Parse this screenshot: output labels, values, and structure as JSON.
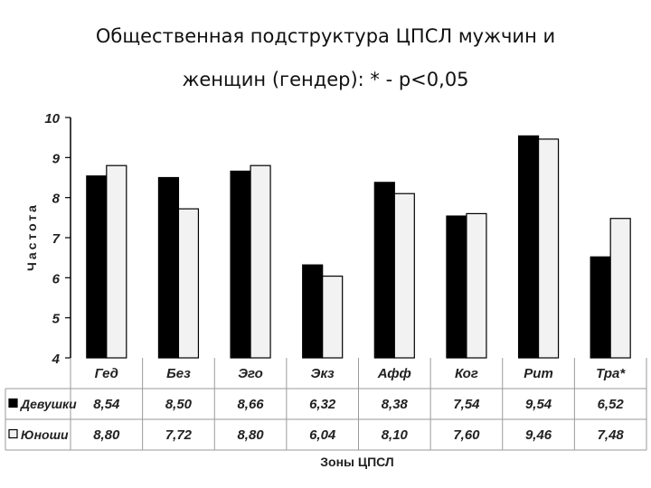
{
  "title_line1": "Общественная подструктура ЦПСЛ мужчин и",
  "title_line2": "женщин (гендер): * - p<0,05",
  "chart_data": {
    "type": "bar",
    "categories": [
      "Гед",
      "Без",
      "Эго",
      "Экз",
      "Афф",
      "Ког",
      "Рит",
      "Тра*"
    ],
    "series": [
      {
        "name": "Девушки",
        "values": [
          8.54,
          8.5,
          8.66,
          6.32,
          8.38,
          7.54,
          9.54,
          6.52
        ],
        "color": "#000000"
      },
      {
        "name": "Юноши",
        "values": [
          8.8,
          7.72,
          8.8,
          6.04,
          8.1,
          7.6,
          9.46,
          7.48
        ],
        "color": "#f2f2f2"
      }
    ],
    "table_values": {
      "Девушки": [
        "8,54",
        "8,50",
        "8,66",
        "6,32",
        "8,38",
        "7,54",
        "9,54",
        "6,52"
      ],
      "Юноши": [
        "8,80",
        "7,72",
        "8,80",
        "6,04",
        "8,10",
        "7,60",
        "9,46",
        "7,48"
      ]
    },
    "yticks": [
      "4",
      "5",
      "6",
      "7",
      "8",
      "9",
      "10"
    ],
    "ylim": [
      4,
      10
    ],
    "ylabel": "Частота",
    "xlabel": "Зоны ЦПСЛ",
    "grid": false,
    "legend": "data table rows"
  }
}
